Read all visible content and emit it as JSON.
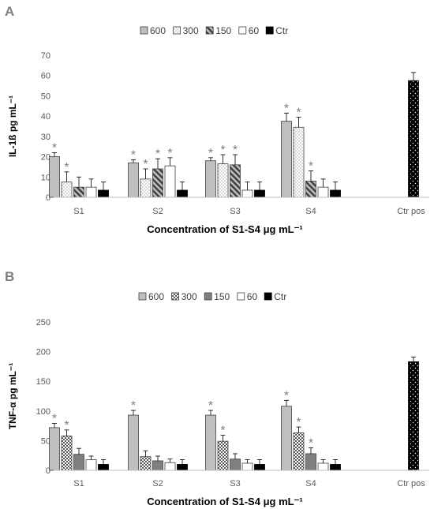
{
  "chart_data": [
    {
      "type": "bar",
      "panel": "A",
      "categories": [
        "S1",
        "S2",
        "S3",
        "S4",
        "Ctr pos"
      ],
      "legend_position": "top",
      "xlabel": "Concentration of S1-S4 μg mL⁻¹",
      "ylabel": "IL-1ß pg mL⁻¹",
      "ylim": [
        0,
        70
      ],
      "yticks": [
        0,
        10,
        20,
        30,
        40,
        50,
        60,
        70
      ],
      "grid": false,
      "series": [
        {
          "name": "600",
          "fill": "#bfbfbf",
          "pattern": "solid",
          "values": [
            20,
            17,
            18,
            37.5,
            null
          ],
          "errors": [
            2,
            1.5,
            1.5,
            4,
            null
          ],
          "stars": [
            true,
            true,
            true,
            true,
            false
          ]
        },
        {
          "name": "300",
          "fill": "#ffffff",
          "pattern": "dots",
          "values": [
            7.5,
            9,
            16.5,
            34.5,
            null
          ],
          "errors": [
            5,
            5,
            4.5,
            5,
            null
          ],
          "stars": [
            true,
            true,
            true,
            true,
            false
          ]
        },
        {
          "name": "150",
          "fill": "#7f7f7f",
          "pattern": "diagonal",
          "values": [
            5,
            14,
            16,
            8,
            null
          ],
          "errors": [
            5,
            5,
            5,
            5,
            null
          ],
          "stars": [
            false,
            true,
            true,
            true,
            false
          ]
        },
        {
          "name": "60",
          "fill": "#ffffff",
          "pattern": "solid",
          "values": [
            5,
            15.5,
            3.5,
            5,
            null
          ],
          "errors": [
            4,
            4,
            4,
            4,
            null
          ],
          "stars": [
            false,
            true,
            false,
            false,
            false
          ]
        },
        {
          "name": "Ctr",
          "fill": "#000000",
          "pattern": "solid",
          "values": [
            3.5,
            3.5,
            3.5,
            3.5,
            null
          ],
          "errors": [
            4,
            4,
            4,
            4,
            null
          ],
          "stars": [
            false,
            false,
            false,
            false,
            false
          ]
        },
        {
          "name": "",
          "fill": "#000000",
          "pattern": "white-dots",
          "legend": false,
          "values": [
            null,
            null,
            null,
            null,
            57.5
          ],
          "errors": [
            null,
            null,
            null,
            null,
            4
          ],
          "stars": [
            false,
            false,
            false,
            false,
            false
          ]
        }
      ]
    },
    {
      "type": "bar",
      "panel": "B",
      "categories": [
        "S1",
        "S2",
        "S3",
        "S4",
        "Ctr pos"
      ],
      "legend_position": "top",
      "xlabel": "Concentration of S1-S4  μg mL⁻¹",
      "ylabel": "TNF-α pg mL⁻¹",
      "ylim": [
        0,
        250
      ],
      "yticks": [
        0,
        50,
        100,
        150,
        200,
        250
      ],
      "grid": false,
      "series": [
        {
          "name": "600",
          "fill": "#bfbfbf",
          "pattern": "solid",
          "values": [
            72,
            93,
            93,
            108,
            null
          ],
          "errors": [
            7,
            8,
            8,
            10,
            null
          ],
          "stars": [
            true,
            true,
            true,
            true,
            false
          ]
        },
        {
          "name": "300",
          "fill": "#ffffff",
          "pattern": "checker",
          "values": [
            58,
            23,
            49,
            63,
            null
          ],
          "errors": [
            10,
            10,
            10,
            10,
            null
          ],
          "stars": [
            true,
            false,
            true,
            true,
            false
          ]
        },
        {
          "name": "150",
          "fill": "#7f7f7f",
          "pattern": "solid",
          "values": [
            27,
            16,
            19,
            28,
            null
          ],
          "errors": [
            10,
            8,
            9,
            10,
            null
          ],
          "stars": [
            false,
            false,
            false,
            true,
            false
          ]
        },
        {
          "name": "60",
          "fill": "#ffffff",
          "pattern": "solid",
          "values": [
            18,
            13,
            12,
            12,
            null
          ],
          "errors": [
            6,
            6,
            6,
            6,
            null
          ],
          "stars": [
            false,
            false,
            false,
            false,
            false
          ]
        },
        {
          "name": "Ctr",
          "fill": "#000000",
          "pattern": "solid",
          "values": [
            10,
            10,
            10,
            10,
            null
          ],
          "errors": [
            8,
            8,
            8,
            8,
            null
          ],
          "stars": [
            false,
            false,
            false,
            false,
            false
          ]
        },
        {
          "name": "",
          "fill": "#000000",
          "pattern": "white-dots",
          "legend": false,
          "values": [
            null,
            null,
            null,
            null,
            183
          ],
          "errors": [
            null,
            null,
            null,
            null,
            8
          ],
          "stars": [
            false,
            false,
            false,
            false,
            false
          ]
        }
      ]
    }
  ],
  "star_symbol": "*"
}
